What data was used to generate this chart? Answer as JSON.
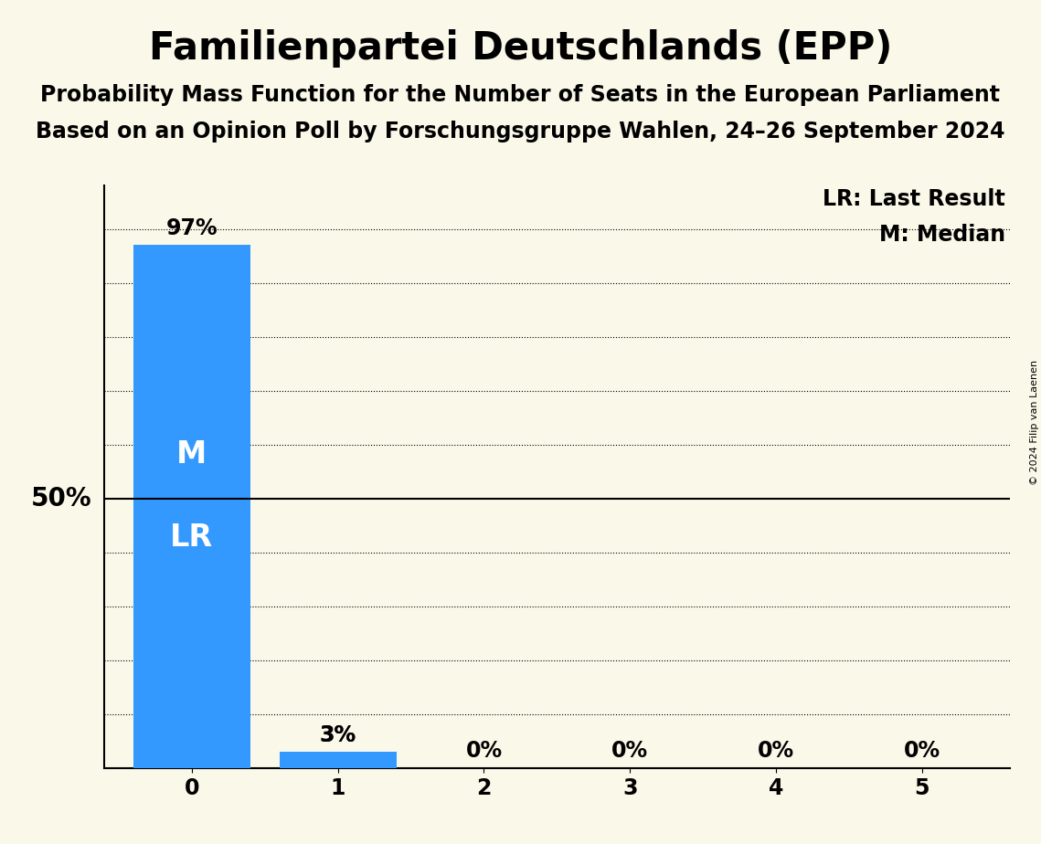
{
  "title": "Familienpartei Deutschlands (EPP)",
  "subtitle1": "Probability Mass Function for the Number of Seats in the European Parliament",
  "subtitle2": "Based on an Opinion Poll by Forschungsgruppe Wahlen, 24–26 September 2024",
  "copyright_text": "© 2024 Filip van Laenen",
  "categories": [
    0,
    1,
    2,
    3,
    4,
    5
  ],
  "values": [
    0.97,
    0.03,
    0.0,
    0.0,
    0.0,
    0.0
  ],
  "bar_color": "#3399ff",
  "background_color": "#faf8e8",
  "ylabel_50": "50%",
  "median_value": 0,
  "last_result_value": 0,
  "median_label": "M",
  "last_result_label": "LR",
  "legend_lr": "LR: Last Result",
  "legend_m": "M: Median",
  "bar_label_fontsize": 17,
  "title_fontsize": 30,
  "subtitle_fontsize": 17,
  "axis_tick_fontsize": 17,
  "ylabel_fontsize": 20,
  "annotation_fontsize": 17,
  "ylim": [
    0,
    1.08
  ],
  "fifty_pct_line": 0.5
}
